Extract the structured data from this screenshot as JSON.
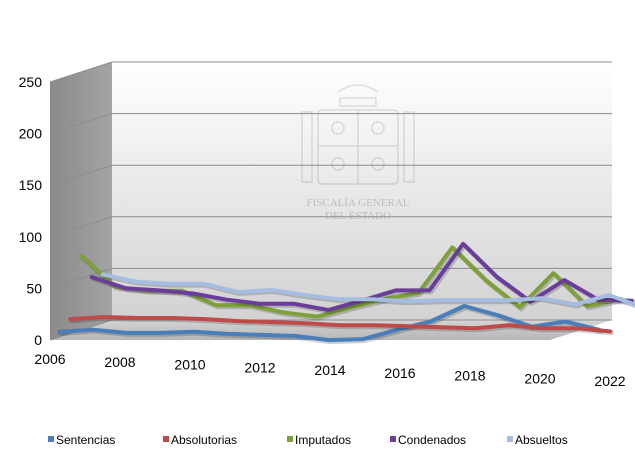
{
  "chart_data": {
    "type": "line",
    "title": "",
    "xlabel": "",
    "ylabel": "",
    "ylim": [
      0,
      250
    ],
    "yticks": [
      "0",
      "50",
      "100",
      "150",
      "200",
      "250"
    ],
    "x": [
      2006,
      2007,
      2008,
      2009,
      2010,
      2011,
      2012,
      2013,
      2014,
      2015,
      2016,
      2017,
      2018,
      2019,
      2020,
      2021,
      2022
    ],
    "xticks": [
      "2006",
      "2008",
      "2010",
      "2012",
      "2014",
      "2016",
      "2018",
      "2020",
      "2022"
    ],
    "grid": true,
    "legend_position": "bottom",
    "watermark": [
      "FISCALÍA GENERAL",
      "DEL ESTADO"
    ],
    "series": [
      {
        "name": "Sentencias",
        "color": "#4a7ebb",
        "values": [
          5,
          7,
          4,
          4,
          5,
          3,
          2,
          1,
          -3,
          -2,
          7,
          15,
          30,
          21,
          10,
          15,
          7
        ]
      },
      {
        "name": "Absolutorias",
        "color": "#be4b48",
        "values": [
          14,
          16,
          15,
          15,
          14,
          12,
          11,
          10,
          8,
          8,
          7,
          6,
          5,
          8,
          5,
          5,
          2
        ]
      },
      {
        "name": "Imputados",
        "color": "#7ea03a",
        "values": [
          72,
          42,
          38,
          38,
          24,
          24,
          17,
          13,
          22,
          30,
          36,
          80,
          48,
          22,
          55,
          23,
          30
        ]
      },
      {
        "name": "Condenados",
        "color": "#6a3d9a",
        "values": [
          48,
          37,
          35,
          32,
          26,
          22,
          22,
          16,
          25,
          35,
          35,
          80,
          48,
          24,
          45,
          26,
          25
        ]
      },
      {
        "name": "Absueltos",
        "color": "#a4bde0",
        "values": [
          47,
          40,
          38,
          38,
          30,
          32,
          27,
          23,
          23,
          21,
          22,
          22,
          22,
          24,
          18,
          27,
          15
        ]
      }
    ]
  }
}
